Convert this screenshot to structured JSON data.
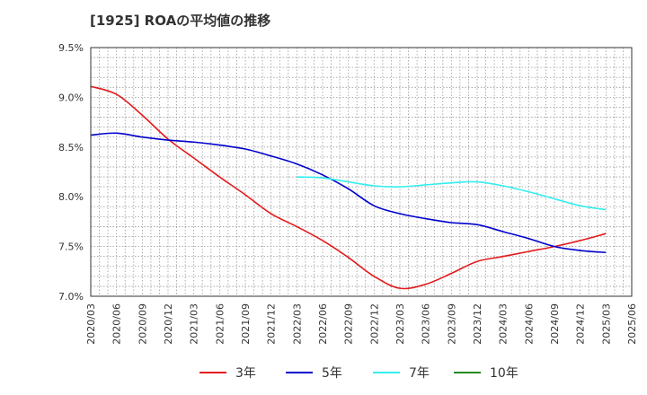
{
  "title": "[1925]  ROAの平均値の推移",
  "chart_data": {
    "type": "line",
    "title": "[1925]  ROAの平均値の推移",
    "xlabel": "",
    "ylabel": "",
    "ylim": [
      7.0,
      9.5
    ],
    "y_ticks": [
      "7.0%",
      "7.5%",
      "8.0%",
      "8.5%",
      "9.0%",
      "9.5%"
    ],
    "y_tick_values": [
      7.0,
      7.5,
      8.0,
      8.5,
      9.0,
      9.5
    ],
    "x_ticks": [
      "2020/03",
      "2020/06",
      "2020/09",
      "2020/12",
      "2021/03",
      "2021/06",
      "2021/09",
      "2021/12",
      "2022/03",
      "2022/06",
      "2022/09",
      "2022/12",
      "2023/03",
      "2023/06",
      "2023/09",
      "2023/12",
      "2024/03",
      "2024/06",
      "2024/09",
      "2024/12",
      "2025/03",
      "2025/06"
    ],
    "grid": true,
    "legend_position": "bottom",
    "series": [
      {
        "name": "3年",
        "color": "#e31a1c",
        "x": [
          "2020/03",
          "2020/06",
          "2020/09",
          "2020/12",
          "2021/03",
          "2021/06",
          "2021/09",
          "2021/12",
          "2022/03",
          "2022/06",
          "2022/09",
          "2022/12",
          "2023/03",
          "2023/06",
          "2023/09",
          "2023/12",
          "2024/03",
          "2024/06",
          "2024/09",
          "2024/12",
          "2025/03"
        ],
        "values": [
          9.11,
          9.03,
          8.82,
          8.58,
          8.39,
          8.2,
          8.02,
          7.83,
          7.7,
          7.56,
          7.39,
          7.2,
          7.08,
          7.12,
          7.23,
          7.35,
          7.4,
          7.45,
          7.5,
          7.56,
          7.63
        ]
      },
      {
        "name": "5年",
        "color": "#0000cc",
        "x": [
          "2020/03",
          "2020/06",
          "2020/09",
          "2020/12",
          "2021/03",
          "2021/06",
          "2021/09",
          "2021/12",
          "2022/03",
          "2022/06",
          "2022/09",
          "2022/12",
          "2023/03",
          "2023/06",
          "2023/09",
          "2023/12",
          "2024/03",
          "2024/06",
          "2024/09",
          "2024/12",
          "2025/03"
        ],
        "values": [
          8.62,
          8.64,
          8.6,
          8.57,
          8.55,
          8.52,
          8.48,
          8.41,
          8.33,
          8.22,
          8.08,
          7.91,
          7.83,
          7.78,
          7.74,
          7.72,
          7.65,
          7.58,
          7.5,
          7.46,
          7.44
        ]
      },
      {
        "name": "7年",
        "color": "#33eeee",
        "x": [
          "2022/03",
          "2022/06",
          "2022/09",
          "2022/12",
          "2023/03",
          "2023/06",
          "2023/09",
          "2023/12",
          "2024/03",
          "2024/06",
          "2024/09",
          "2024/12",
          "2025/03"
        ],
        "values": [
          8.2,
          8.19,
          8.15,
          8.11,
          8.1,
          8.12,
          8.14,
          8.15,
          8.11,
          8.05,
          7.98,
          7.91,
          7.87
        ]
      },
      {
        "name": "10年",
        "color": "#228b22",
        "x": [],
        "values": []
      }
    ]
  }
}
